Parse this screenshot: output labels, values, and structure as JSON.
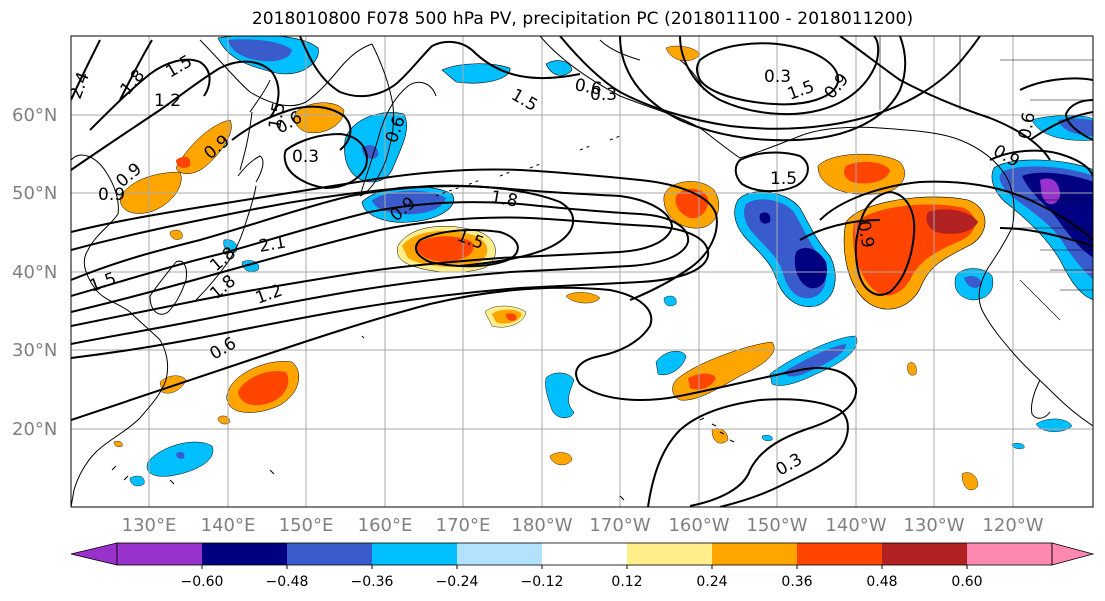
{
  "title": "2018010800 F078 500 hPa PV, precipitation PC (2018011100 - 2018011200)",
  "map": {
    "lat_labels": [
      "60°N",
      "50°N",
      "40°N",
      "30°N",
      "20°N"
    ],
    "lon_labels": [
      "130°E",
      "140°E",
      "150°E",
      "160°E",
      "170°E",
      "180°W",
      "170°W",
      "160°W",
      "150°W",
      "140°W",
      "130°W",
      "120°W"
    ],
    "contour_labels": [
      "2.4",
      "1.8",
      "1.5",
      "1.2",
      "1.5",
      "0.9",
      "0.6",
      "0.9",
      "0.3",
      "0.6",
      "1.5",
      "0.6",
      "0.3",
      "1.5",
      "0.9",
      "0.6",
      "1.5",
      "0.9",
      "0.9",
      "0.9",
      "1.8",
      "1.5",
      "2.1",
      "1.8",
      "1.5",
      "1.8",
      "1.2",
      "0.6",
      "0.3",
      "0.9",
      "0.3"
    ],
    "fill_colors": {
      "neg_060": "#9932CC",
      "neg_048": "#000080",
      "neg_036": "#3A5BCB",
      "neg_024": "#00BFFF",
      "neg_012": "#B2E2FE",
      "pos_012": "#FFEE8A",
      "pos_024": "#FFA500",
      "pos_036": "#FF4500",
      "pos_048": "#B22222",
      "pos_060": "#FF88B0"
    }
  },
  "colorbar": {
    "ticks": [
      "−0.60",
      "−0.48",
      "−0.36",
      "−0.24",
      "−0.12",
      "0.12",
      "0.24",
      "0.36",
      "0.48",
      "0.60"
    ],
    "colors": [
      "#9932CC",
      "#000080",
      "#3A5BCB",
      "#00BFFF",
      "#B2E2FE",
      "#FFFFFF",
      "#FFEE8A",
      "#FFA500",
      "#FF4500",
      "#B22222",
      "#FF88B0"
    ]
  }
}
